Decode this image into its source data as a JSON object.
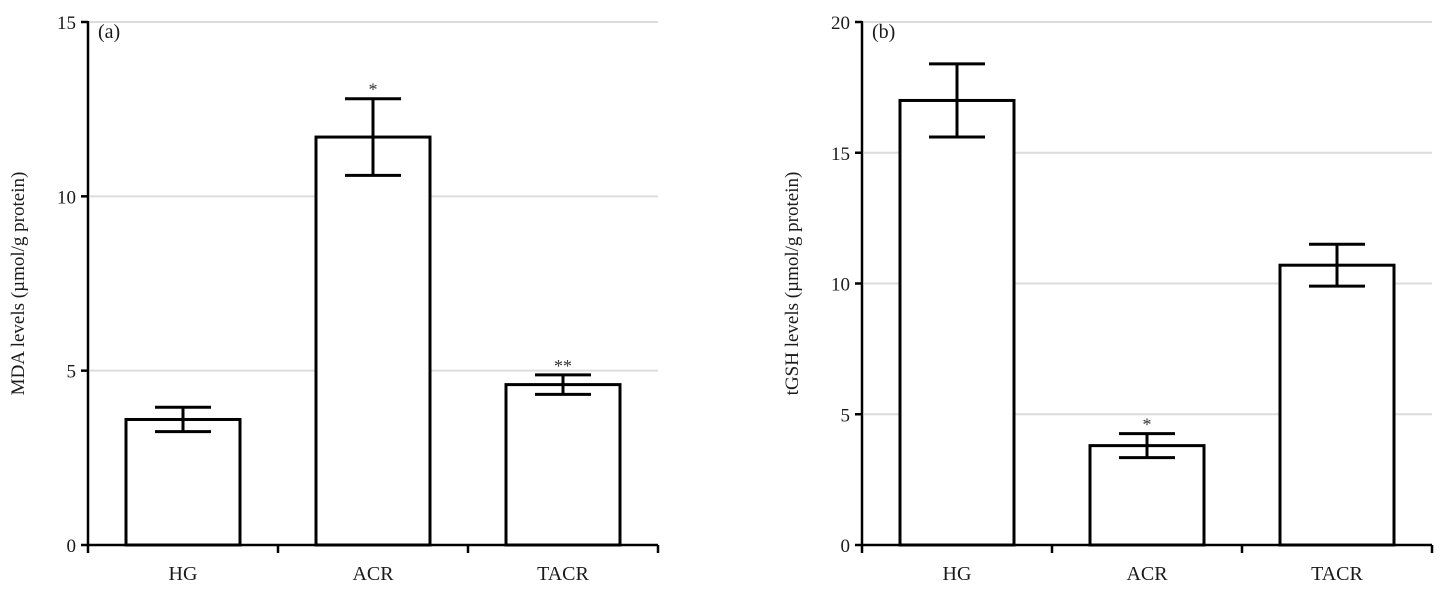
{
  "chart_data": [
    {
      "type": "bar",
      "panel_label": "(a)",
      "ylabel": "MDA levels (µmol/g protein)",
      "categories": [
        "HG",
        "ACR",
        "TACR"
      ],
      "values": [
        3.6,
        11.7,
        4.6
      ],
      "errors": [
        0.35,
        1.1,
        0.28
      ],
      "annotations": [
        "",
        "*",
        "**"
      ],
      "ylim": [
        0,
        15
      ],
      "yticks": [
        0,
        5,
        10,
        15
      ],
      "grid": true,
      "bar_fill": "#ffffff",
      "bar_stroke": "#000000"
    },
    {
      "type": "bar",
      "panel_label": "(b)",
      "ylabel": "tGSH levels (µmol/g protein)",
      "categories": [
        "HG",
        "ACR",
        "TACR"
      ],
      "values": [
        17.0,
        3.8,
        10.7
      ],
      "errors": [
        1.4,
        0.46,
        0.8
      ],
      "annotations": [
        "",
        "*",
        ""
      ],
      "ylim": [
        0,
        20
      ],
      "yticks": [
        0,
        5,
        10,
        15,
        20
      ],
      "grid": true,
      "bar_fill": "#ffffff",
      "bar_stroke": "#000000"
    }
  ]
}
